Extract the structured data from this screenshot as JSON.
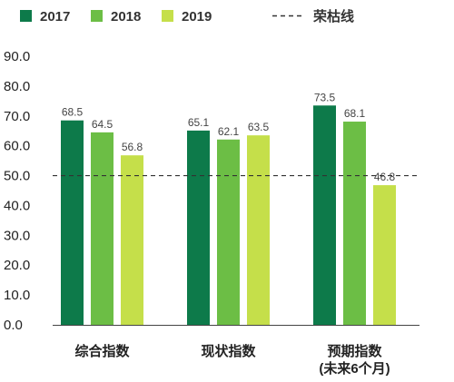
{
  "chart_data": {
    "type": "bar",
    "categories": [
      {
        "lines": [
          "综合指数"
        ]
      },
      {
        "lines": [
          "现状指数"
        ]
      },
      {
        "lines": [
          "预期指数",
          "(未来6个月)"
        ]
      }
    ],
    "series": [
      {
        "name": "2017",
        "color": "#0d7a4a",
        "values": [
          68.5,
          65.1,
          73.5
        ]
      },
      {
        "name": "2018",
        "color": "#6cbe45",
        "values": [
          64.5,
          62.1,
          68.1
        ]
      },
      {
        "name": "2019",
        "color": "#c5df4a",
        "values": [
          56.8,
          63.5,
          46.8
        ]
      }
    ],
    "reference_line": {
      "name": "荣枯线",
      "value": 50.0,
      "style": "dashed",
      "color": "#333333"
    },
    "y_ticks": [
      "0.0",
      "10.0",
      "20.0",
      "30.0",
      "40.0",
      "50.0",
      "60.0",
      "70.0",
      "80.0",
      "90.0"
    ],
    "ylim": [
      0,
      90
    ],
    "grid": false,
    "legend_position": "top",
    "title": "",
    "xlabel": "",
    "ylabel": ""
  }
}
